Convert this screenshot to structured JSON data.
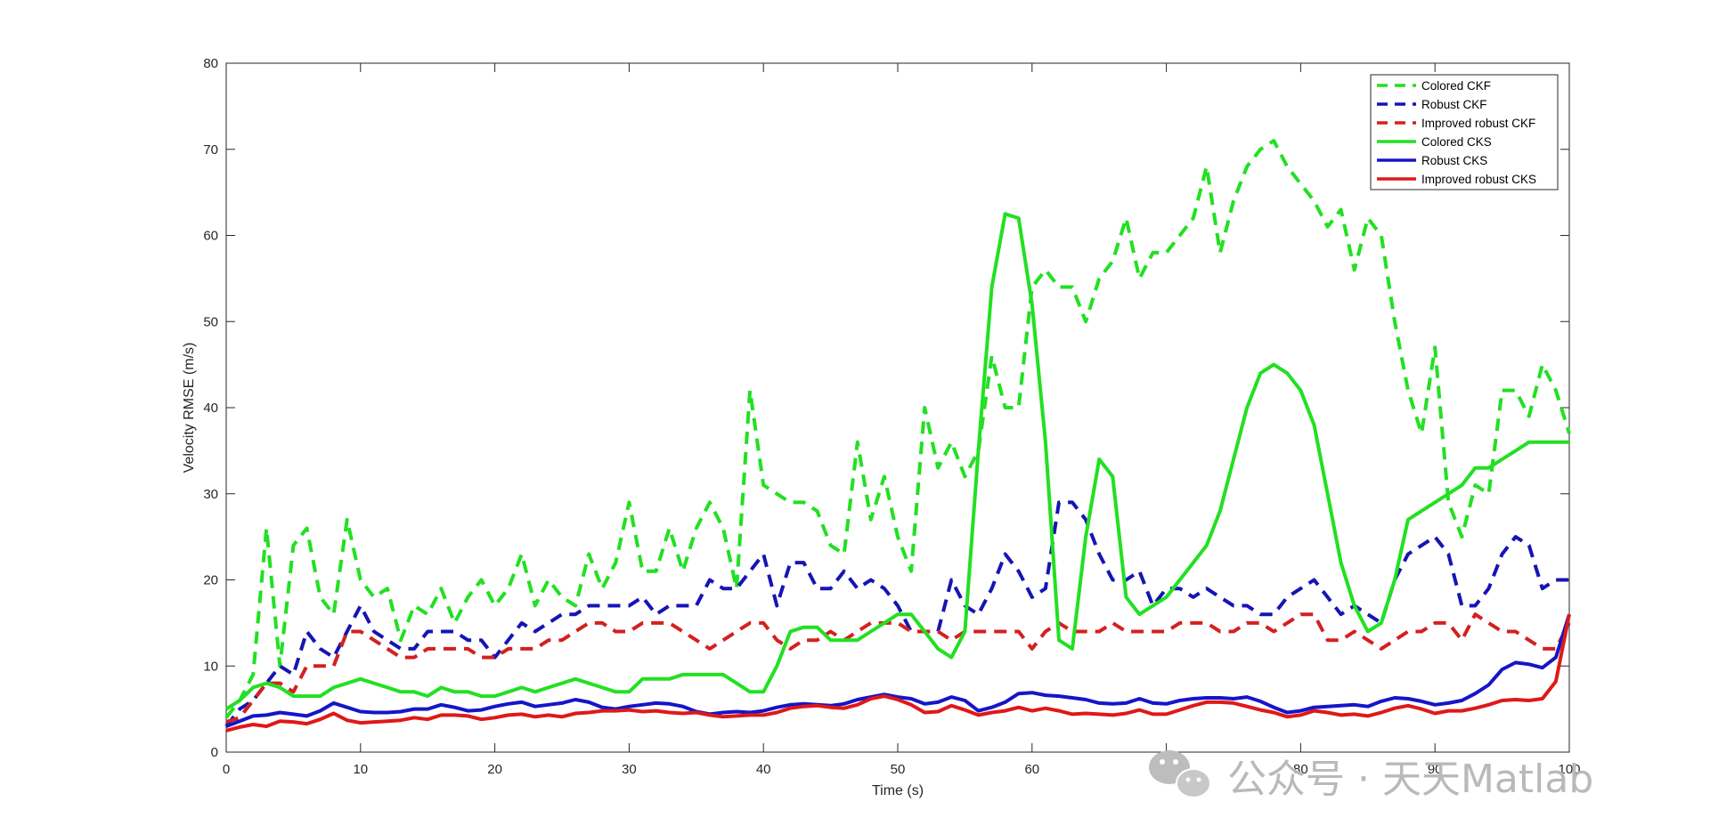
{
  "chart_data": {
    "type": "line",
    "title": "",
    "xlabel": "Time (s)",
    "ylabel": "Velocity RMSE (m/s)",
    "xlim": [
      0,
      100
    ],
    "ylim": [
      0,
      80
    ],
    "xticks": [
      0,
      10,
      20,
      30,
      40,
      50,
      60,
      70,
      80,
      90,
      100
    ],
    "yticks": [
      0,
      10,
      20,
      30,
      40,
      50,
      60,
      70,
      80
    ],
    "grid": false,
    "legend_position": "top-right",
    "series": [
      {
        "name": "Colored CKF",
        "color": "#22e022",
        "style": "dashed",
        "x": [
          0,
          1,
          2,
          3,
          4,
          5,
          6,
          7,
          8,
          9,
          10,
          11,
          12,
          13,
          14,
          15,
          16,
          17,
          18,
          19,
          20,
          21,
          22,
          23,
          24,
          25,
          26,
          27,
          28,
          29,
          30,
          31,
          32,
          33,
          34,
          35,
          36,
          37,
          38,
          39,
          40,
          41,
          42,
          43,
          44,
          45,
          46,
          47,
          48,
          49,
          50,
          51,
          52,
          53,
          54,
          55,
          56,
          57,
          58,
          59,
          60,
          61,
          62,
          63,
          64,
          65,
          66,
          67,
          68,
          69,
          70,
          71,
          72,
          73,
          74,
          75,
          76,
          77,
          78,
          79,
          80,
          81,
          82,
          83,
          84,
          85,
          86,
          87,
          88,
          89,
          90,
          91,
          92,
          93,
          94,
          95,
          96,
          97,
          98,
          99,
          100
        ],
        "y": [
          4,
          6,
          9,
          26,
          10,
          24,
          26,
          18,
          16,
          27,
          20,
          18,
          19,
          13,
          17,
          16,
          19,
          15,
          18,
          20,
          17,
          19,
          23,
          17,
          20,
          18,
          17,
          23,
          19,
          22,
          29,
          21,
          21,
          26,
          21,
          26,
          29,
          26,
          19,
          42,
          31,
          30,
          29,
          29,
          28,
          24,
          23,
          36,
          27,
          32,
          25,
          21,
          40,
          33,
          36,
          32,
          35,
          46,
          40,
          40,
          54,
          56,
          54,
          54,
          50,
          55,
          57,
          62,
          55,
          58,
          58,
          60,
          62,
          68,
          58,
          64,
          68,
          70,
          71,
          68,
          66,
          64,
          61,
          63,
          56,
          62,
          60,
          50,
          42,
          37,
          47,
          29,
          25,
          31,
          30,
          42,
          42,
          39,
          45,
          42,
          37
        ]
      },
      {
        "name": "Robust CKF",
        "color": "#1515b4",
        "style": "dashed",
        "x": [
          0,
          1,
          2,
          3,
          4,
          5,
          6,
          7,
          8,
          9,
          10,
          11,
          12,
          13,
          14,
          15,
          16,
          17,
          18,
          19,
          20,
          21,
          22,
          23,
          24,
          25,
          26,
          27,
          28,
          29,
          30,
          31,
          32,
          33,
          34,
          35,
          36,
          37,
          38,
          39,
          40,
          41,
          42,
          43,
          44,
          45,
          46,
          47,
          48,
          49,
          50,
          51,
          52,
          53,
          54,
          55,
          56,
          57,
          58,
          59,
          60,
          61,
          62,
          63,
          64,
          65,
          66,
          67,
          68,
          69,
          70,
          71,
          72,
          73,
          74,
          75,
          76,
          77,
          78,
          79,
          80,
          81,
          82,
          83,
          84,
          85,
          86,
          87,
          88,
          89,
          90,
          91,
          92,
          93,
          94,
          95,
          96,
          97,
          98,
          99,
          100
        ],
        "y": [
          3,
          5,
          6,
          8,
          10,
          9,
          14,
          12,
          11,
          14,
          17,
          14,
          13,
          12,
          12,
          14,
          14,
          14,
          13,
          13,
          11,
          13,
          15,
          14,
          15,
          16,
          16,
          17,
          17,
          17,
          17,
          18,
          16,
          17,
          17,
          17,
          20,
          19,
          19,
          21,
          23,
          17,
          22,
          22,
          19,
          19,
          21,
          19,
          20,
          19,
          17,
          14,
          14,
          14,
          20,
          17,
          16,
          19,
          23,
          21,
          18,
          19,
          29,
          29,
          27,
          23,
          20,
          20,
          21,
          17,
          19,
          19,
          18,
          19,
          18,
          17,
          17,
          16,
          16,
          18,
          19,
          20,
          18,
          16,
          17,
          16,
          15,
          20,
          23,
          24,
          25,
          23,
          17,
          17,
          19,
          23,
          25,
          24,
          19,
          20,
          20
        ]
      },
      {
        "name": "Improved robust CKF",
        "color": "#d42020",
        "style": "dashed",
        "x": [
          0,
          1,
          2,
          3,
          4,
          5,
          6,
          7,
          8,
          9,
          10,
          11,
          12,
          13,
          14,
          15,
          16,
          17,
          18,
          19,
          20,
          21,
          22,
          23,
          24,
          25,
          26,
          27,
          28,
          29,
          30,
          31,
          32,
          33,
          34,
          35,
          36,
          37,
          38,
          39,
          40,
          41,
          42,
          43,
          44,
          45,
          46,
          47,
          48,
          49,
          50,
          51,
          52,
          53,
          54,
          55,
          56,
          57,
          58,
          59,
          60,
          61,
          62,
          63,
          64,
          65,
          66,
          67,
          68,
          69,
          70,
          71,
          72,
          73,
          74,
          75,
          76,
          77,
          78,
          79,
          80,
          81,
          82,
          83,
          84,
          85,
          86,
          87,
          88,
          89,
          90,
          91,
          92,
          93,
          94,
          95,
          96,
          97,
          98,
          99,
          100
        ],
        "y": [
          3.5,
          4,
          6,
          8,
          8,
          7,
          10,
          10,
          10,
          14,
          14,
          13,
          12,
          11,
          11,
          12,
          12,
          12,
          12,
          11,
          11,
          12,
          12,
          12,
          13,
          13,
          14,
          15,
          15,
          14,
          14,
          15,
          15,
          15,
          14,
          13,
          12,
          13,
          14,
          15,
          15,
          13,
          12,
          13,
          13,
          14,
          13,
          14,
          15,
          15,
          15,
          14,
          14,
          14,
          13,
          14,
          14,
          14,
          14,
          14,
          12,
          14,
          15,
          14,
          14,
          14,
          15,
          14,
          14,
          14,
          14,
          15,
          15,
          15,
          14,
          14,
          15,
          15,
          14,
          15,
          16,
          16,
          13,
          13,
          14,
          13,
          12,
          13,
          14,
          14,
          15,
          15,
          13,
          16,
          15,
          14,
          14,
          13,
          12,
          12,
          15
        ]
      },
      {
        "name": "Colored CKS",
        "color": "#22e022",
        "style": "solid",
        "x": [
          0,
          1,
          2,
          3,
          4,
          5,
          6,
          7,
          8,
          9,
          10,
          11,
          12,
          13,
          14,
          15,
          16,
          17,
          18,
          19,
          20,
          21,
          22,
          23,
          24,
          25,
          26,
          27,
          28,
          29,
          30,
          31,
          32,
          33,
          34,
          35,
          36,
          37,
          38,
          39,
          40,
          41,
          42,
          43,
          44,
          45,
          46,
          47,
          48,
          49,
          50,
          51,
          52,
          53,
          54,
          55,
          56,
          57,
          58,
          59,
          60,
          61,
          62,
          63,
          64,
          65,
          66,
          67,
          68,
          69,
          70,
          71,
          72,
          73,
          74,
          75,
          76,
          77,
          78,
          79,
          80,
          81,
          82,
          83,
          84,
          85,
          86,
          87,
          88,
          89,
          90,
          91,
          92,
          93,
          94,
          95,
          96,
          97,
          98,
          99,
          100
        ],
        "y": [
          5,
          6,
          7.5,
          8,
          7.5,
          6.5,
          6.5,
          6.5,
          7.5,
          8,
          8.5,
          8,
          7.5,
          7,
          7,
          6.5,
          7.5,
          7,
          7,
          6.5,
          6.5,
          7,
          7.5,
          7,
          7.5,
          8,
          8.5,
          8,
          7.5,
          7,
          7,
          8.5,
          8.5,
          8.5,
          9,
          9,
          9,
          9,
          8,
          7,
          7,
          10,
          14,
          14.5,
          14.5,
          13,
          13,
          13,
          14,
          15,
          16,
          16,
          14,
          12,
          11,
          14,
          35,
          54,
          62.5,
          62,
          52,
          36,
          13,
          12,
          25,
          34,
          32,
          18,
          16,
          17,
          18,
          20,
          22,
          24,
          28,
          34,
          40,
          44,
          45,
          44,
          42,
          38,
          30,
          22,
          17,
          14,
          15,
          20,
          27,
          28,
          29,
          30,
          31,
          33,
          33,
          34,
          35,
          36,
          36,
          36,
          36
        ]
      },
      {
        "name": "Robust CKS",
        "color": "#1515c8",
        "style": "solid",
        "x": [
          0,
          1,
          2,
          3,
          4,
          5,
          6,
          7,
          8,
          9,
          10,
          11,
          12,
          13,
          14,
          15,
          16,
          17,
          18,
          19,
          20,
          21,
          22,
          23,
          24,
          25,
          26,
          27,
          28,
          29,
          30,
          31,
          32,
          33,
          34,
          35,
          36,
          37,
          38,
          39,
          40,
          41,
          42,
          43,
          44,
          45,
          46,
          47,
          48,
          49,
          50,
          51,
          52,
          53,
          54,
          55,
          56,
          57,
          58,
          59,
          60,
          61,
          62,
          63,
          64,
          65,
          66,
          67,
          68,
          69,
          70,
          71,
          72,
          73,
          74,
          75,
          76,
          77,
          78,
          79,
          80,
          81,
          82,
          83,
          84,
          85,
          86,
          87,
          88,
          89,
          90,
          91,
          92,
          93,
          94,
          95,
          96,
          97,
          98,
          99,
          100
        ],
        "y": [
          3,
          3.6,
          4.2,
          4.3,
          4.6,
          4.4,
          4.2,
          4.8,
          5.7,
          5.2,
          4.7,
          4.6,
          4.6,
          4.7,
          5,
          5,
          5.5,
          5.2,
          4.8,
          4.9,
          5.3,
          5.6,
          5.8,
          5.3,
          5.5,
          5.7,
          6.1,
          5.8,
          5.2,
          5,
          5.3,
          5.5,
          5.7,
          5.6,
          5.3,
          4.7,
          4.4,
          4.6,
          4.7,
          4.6,
          4.8,
          5.2,
          5.5,
          5.6,
          5.5,
          5.4,
          5.6,
          6.1,
          6.4,
          6.7,
          6.4,
          6.2,
          5.6,
          5.8,
          6.4,
          6,
          4.8,
          5.2,
          5.8,
          6.8,
          6.9,
          6.6,
          6.5,
          6.3,
          6.1,
          5.7,
          5.6,
          5.7,
          6.2,
          5.7,
          5.6,
          6,
          6.2,
          6.3,
          6.3,
          6.2,
          6.4,
          5.9,
          5.2,
          4.6,
          4.8,
          5.2,
          5.3,
          5.4,
          5.5,
          5.3,
          5.9,
          6.3,
          6.2,
          5.9,
          5.5,
          5.7,
          6,
          6.8,
          7.8,
          9.6,
          10.4,
          10.2,
          9.8,
          11,
          16
        ]
      },
      {
        "name": "Improved robust CKS",
        "color": "#e01818",
        "style": "solid",
        "x": [
          0,
          1,
          2,
          3,
          4,
          5,
          6,
          7,
          8,
          9,
          10,
          11,
          12,
          13,
          14,
          15,
          16,
          17,
          18,
          19,
          20,
          21,
          22,
          23,
          24,
          25,
          26,
          27,
          28,
          29,
          30,
          31,
          32,
          33,
          34,
          35,
          36,
          37,
          38,
          39,
          40,
          41,
          42,
          43,
          44,
          45,
          46,
          47,
          48,
          49,
          50,
          51,
          52,
          53,
          54,
          55,
          56,
          57,
          58,
          59,
          60,
          61,
          62,
          63,
          64,
          65,
          66,
          67,
          68,
          69,
          70,
          71,
          72,
          73,
          74,
          75,
          76,
          77,
          78,
          79,
          80,
          81,
          82,
          83,
          84,
          85,
          86,
          87,
          88,
          89,
          90,
          91,
          92,
          93,
          94,
          95,
          96,
          97,
          98,
          99,
          100
        ],
        "y": [
          2.5,
          2.9,
          3.2,
          3,
          3.6,
          3.5,
          3.3,
          3.8,
          4.5,
          3.7,
          3.4,
          3.5,
          3.6,
          3.7,
          4,
          3.8,
          4.3,
          4.3,
          4.2,
          3.8,
          4,
          4.3,
          4.4,
          4.1,
          4.3,
          4.1,
          4.5,
          4.6,
          4.8,
          4.8,
          4.9,
          4.7,
          4.8,
          4.6,
          4.5,
          4.6,
          4.3,
          4.1,
          4.2,
          4.3,
          4.3,
          4.6,
          5.1,
          5.3,
          5.4,
          5.2,
          5.1,
          5.5,
          6.2,
          6.5,
          6.1,
          5.5,
          4.6,
          4.7,
          5.4,
          4.9,
          4.3,
          4.6,
          4.8,
          5.2,
          4.8,
          5.1,
          4.8,
          4.4,
          4.5,
          4.4,
          4.3,
          4.5,
          4.9,
          4.4,
          4.4,
          4.9,
          5.4,
          5.8,
          5.8,
          5.7,
          5.3,
          4.9,
          4.6,
          4.1,
          4.3,
          4.8,
          4.6,
          4.3,
          4.4,
          4.2,
          4.6,
          5.1,
          5.4,
          5,
          4.5,
          4.8,
          4.8,
          5.1,
          5.5,
          6,
          6.1,
          6,
          6.2,
          8.2,
          16
        ]
      }
    ]
  },
  "watermark": {
    "text": "公众号 · 天天Matlab",
    "icon": "wechat-icon"
  }
}
